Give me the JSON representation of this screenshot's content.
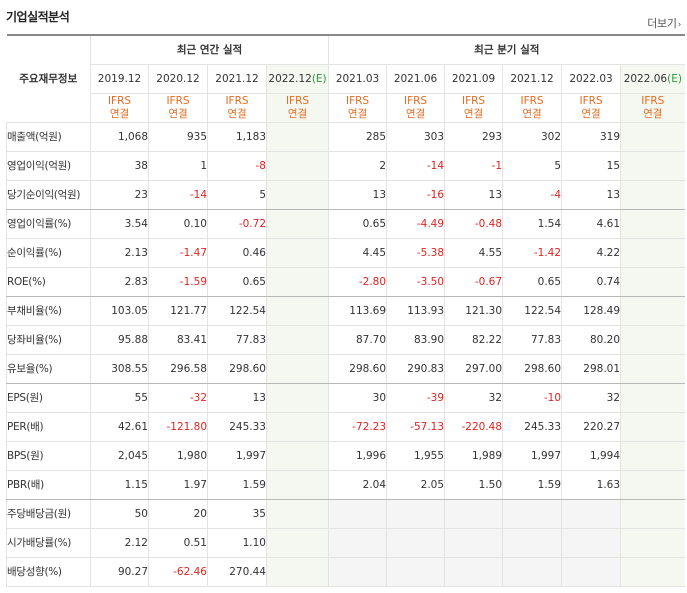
{
  "section_title": "기업실적분석",
  "more_label": "더보기",
  "more_icon": "chevron-right-icon",
  "corner_label": "주요재무정보",
  "annual_group": "최근 연간 실적",
  "quarter_group": "최근 분기 실적",
  "estimate_mark": "(E)",
  "annual_periods": [
    "2019.12",
    "2020.12",
    "2021.12",
    "2022.12"
  ],
  "quarter_periods": [
    "2021.03",
    "2021.06",
    "2021.09",
    "2021.12",
    "2022.03",
    "2022.06"
  ],
  "ifrs_line1": "IFRS",
  "ifrs_line2": "연결",
  "colors": {
    "negative": "#e0231f",
    "ifrs": "#e66a1e",
    "estimate": "#2c9a3f"
  },
  "rows": [
    {
      "label": "매출액(억원)",
      "values": [
        "1,068",
        "935",
        "1,183",
        "",
        "285",
        "303",
        "293",
        "302",
        "319",
        ""
      ]
    },
    {
      "label": "영업이익(억원)",
      "values": [
        "38",
        "1",
        "-8",
        "",
        "2",
        "-14",
        "-1",
        "5",
        "15",
        ""
      ]
    },
    {
      "label": "당기순이익(억원)",
      "values": [
        "23",
        "-14",
        "5",
        "",
        "13",
        "-16",
        "13",
        "-4",
        "13",
        ""
      ]
    },
    {
      "label": "영업이익률(%)",
      "values": [
        "3.54",
        "0.10",
        "-0.72",
        "",
        "0.65",
        "-4.49",
        "-0.48",
        "1.54",
        "4.61",
        ""
      ]
    },
    {
      "label": "순이익률(%)",
      "values": [
        "2.13",
        "-1.47",
        "0.46",
        "",
        "4.45",
        "-5.38",
        "4.55",
        "-1.42",
        "4.22",
        ""
      ]
    },
    {
      "label": "ROE(%)",
      "values": [
        "2.83",
        "-1.59",
        "0.65",
        "",
        "-2.80",
        "-3.50",
        "-0.67",
        "0.65",
        "0.74",
        ""
      ]
    },
    {
      "label": "부채비율(%)",
      "values": [
        "103.05",
        "121.77",
        "122.54",
        "",
        "113.69",
        "113.93",
        "121.30",
        "122.54",
        "128.49",
        ""
      ]
    },
    {
      "label": "당좌비율(%)",
      "values": [
        "95.88",
        "83.41",
        "77.83",
        "",
        "87.70",
        "83.90",
        "82.22",
        "77.83",
        "80.20",
        ""
      ]
    },
    {
      "label": "유보율(%)",
      "values": [
        "308.55",
        "296.58",
        "298.60",
        "",
        "298.60",
        "290.83",
        "297.00",
        "298.60",
        "298.01",
        ""
      ]
    },
    {
      "label": "EPS(원)",
      "values": [
        "55",
        "-32",
        "13",
        "",
        "30",
        "-39",
        "32",
        "-10",
        "32",
        ""
      ]
    },
    {
      "label": "PER(배)",
      "values": [
        "42.61",
        "-121.80",
        "245.33",
        "",
        "-72.23",
        "-57.13",
        "-220.48",
        "245.33",
        "220.27",
        ""
      ]
    },
    {
      "label": "BPS(원)",
      "values": [
        "2,045",
        "1,980",
        "1,997",
        "",
        "1,996",
        "1,955",
        "1,989",
        "1,997",
        "1,994",
        ""
      ]
    },
    {
      "label": "PBR(배)",
      "values": [
        "1.15",
        "1.97",
        "1.59",
        "",
        "2.04",
        "2.05",
        "1.50",
        "1.59",
        "1.63",
        ""
      ]
    },
    {
      "label": "주당배당금(원)",
      "values": [
        "50",
        "20",
        "35",
        "",
        "",
        "",
        "",
        "",
        "",
        ""
      ]
    },
    {
      "label": "시가배당률(%)",
      "values": [
        "2.12",
        "0.51",
        "1.10",
        "",
        "",
        "",
        "",
        "",
        "",
        ""
      ]
    },
    {
      "label": "배당성향(%)",
      "values": [
        "90.27",
        "-62.46",
        "270.44",
        "",
        "",
        "",
        "",
        "",
        "",
        ""
      ]
    }
  ]
}
